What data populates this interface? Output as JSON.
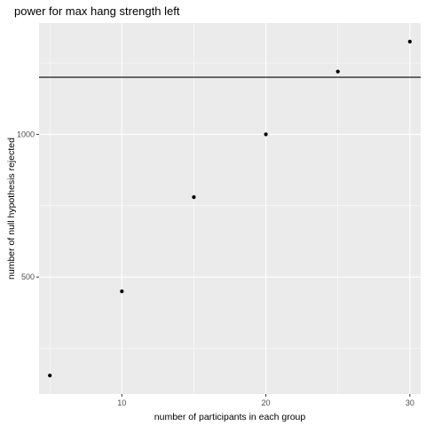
{
  "chart_data": {
    "type": "scatter",
    "title": "power for max hang strength left",
    "xlabel": "number of participants in each group",
    "ylabel": "number of null hypothesis rejected",
    "x": [
      5,
      10,
      15,
      20,
      25,
      30
    ],
    "y": [
      155,
      450,
      780,
      1000,
      1220,
      1325
    ],
    "xlim": [
      4.25,
      30.75
    ],
    "ylim": [
      90,
      1390
    ],
    "xticks": [
      10,
      20,
      30
    ],
    "xtick_labels": [
      "10",
      "20",
      "30"
    ],
    "yticks": [
      500,
      1000
    ],
    "ytick_labels": [
      "500",
      "1000"
    ],
    "hline": 1200,
    "grid": true,
    "colors": {
      "panel": "#ebebeb",
      "grid_major": "#ffffff",
      "points": "#000000",
      "hline": "#000000"
    }
  }
}
